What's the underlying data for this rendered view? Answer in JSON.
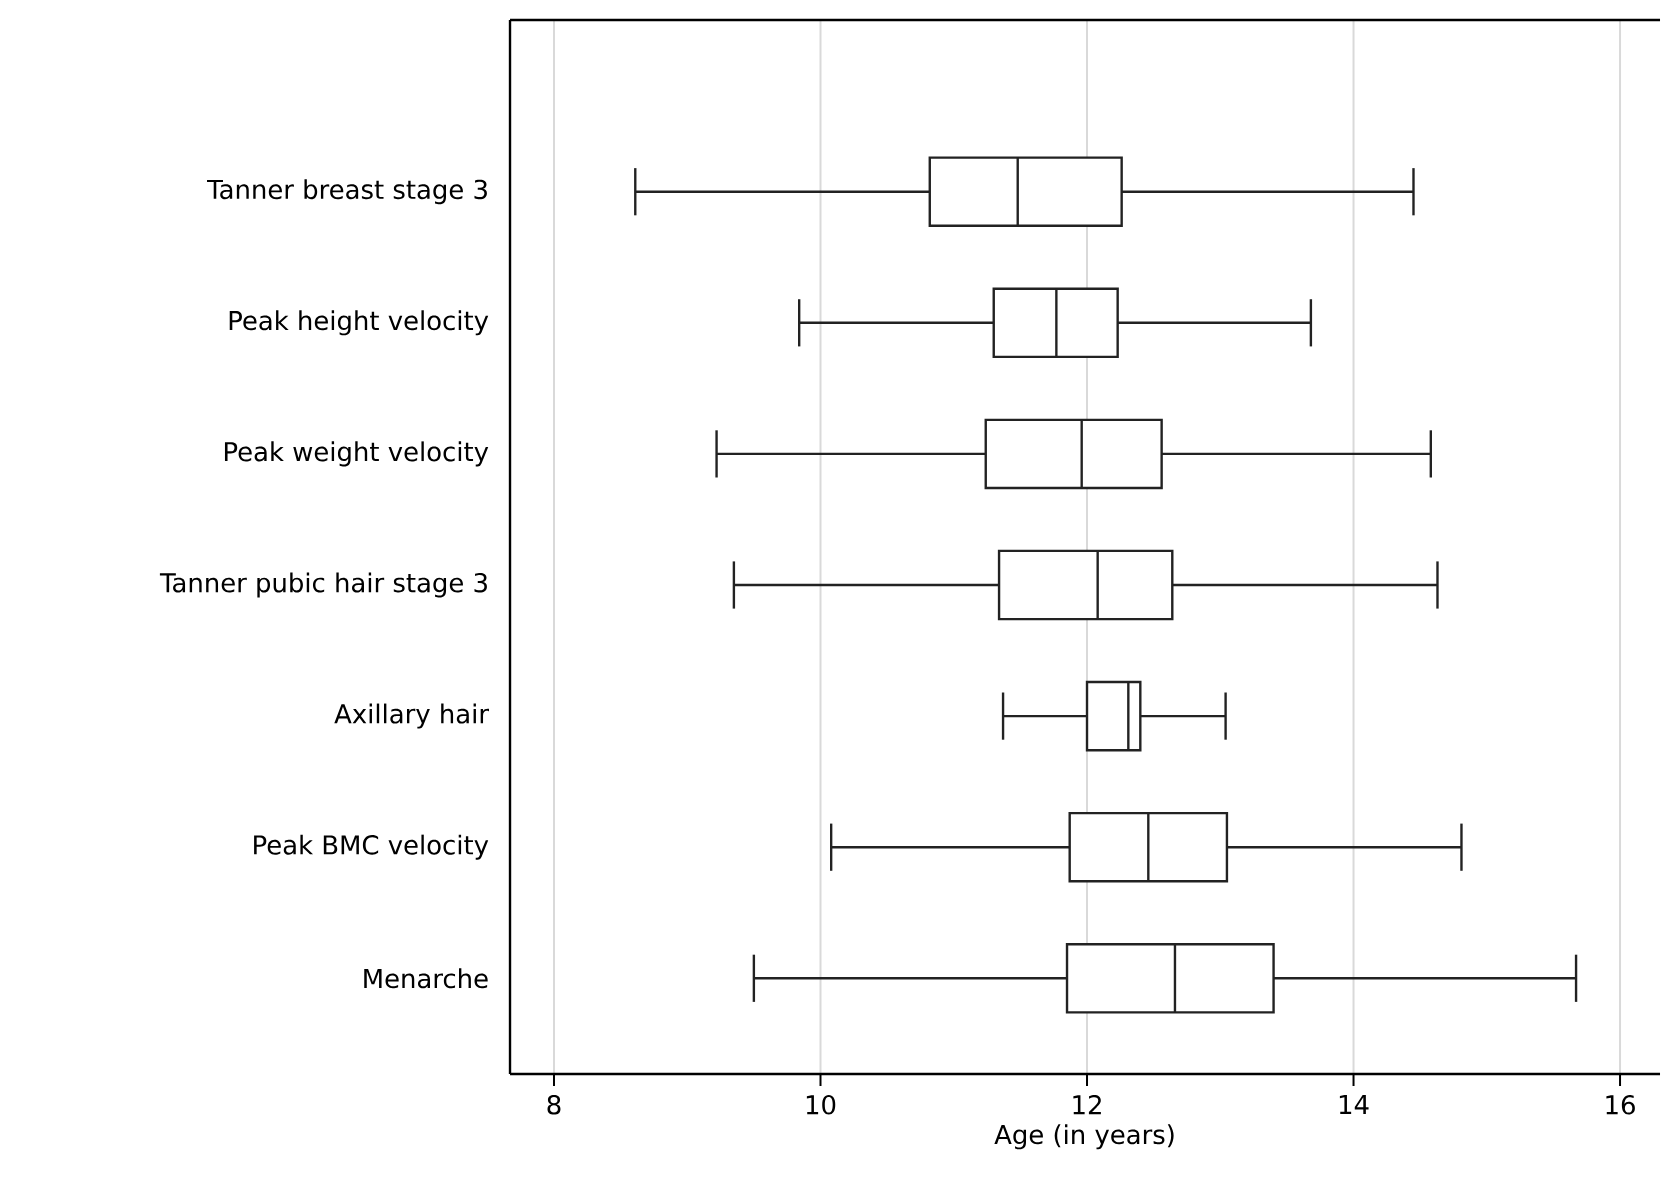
{
  "chart_data": {
    "type": "box",
    "orientation": "horizontal",
    "xlabel": "Age (in years)",
    "categories": [
      "Tanner breast stage 3",
      "Peak height velocity",
      "Peak weight velocity",
      "Tanner pubic hair stage 3",
      "Axillary hair",
      "Peak BMC velocity",
      "Menarche"
    ],
    "boxes": [
      {
        "low": 8.61,
        "q1": 10.82,
        "median": 11.48,
        "q3": 12.26,
        "high": 14.45
      },
      {
        "low": 9.84,
        "q1": 11.3,
        "median": 11.77,
        "q3": 12.23,
        "high": 13.68
      },
      {
        "low": 9.22,
        "q1": 11.24,
        "median": 11.96,
        "q3": 12.56,
        "high": 14.58
      },
      {
        "low": 9.35,
        "q1": 11.34,
        "median": 12.08,
        "q3": 12.64,
        "high": 14.63
      },
      {
        "low": 11.37,
        "q1": 12.0,
        "median": 12.31,
        "q3": 12.4,
        "high": 13.04
      },
      {
        "low": 10.08,
        "q1": 11.87,
        "median": 12.46,
        "q3": 13.05,
        "high": 14.81
      },
      {
        "low": 9.5,
        "q1": 11.85,
        "median": 12.66,
        "q3": 13.4,
        "high": 15.67
      }
    ],
    "color": "#222222",
    "xlim": [
      7.67,
      16.3
    ],
    "xticks": [
      8,
      10,
      12,
      14,
      16
    ],
    "grid": "x"
  }
}
